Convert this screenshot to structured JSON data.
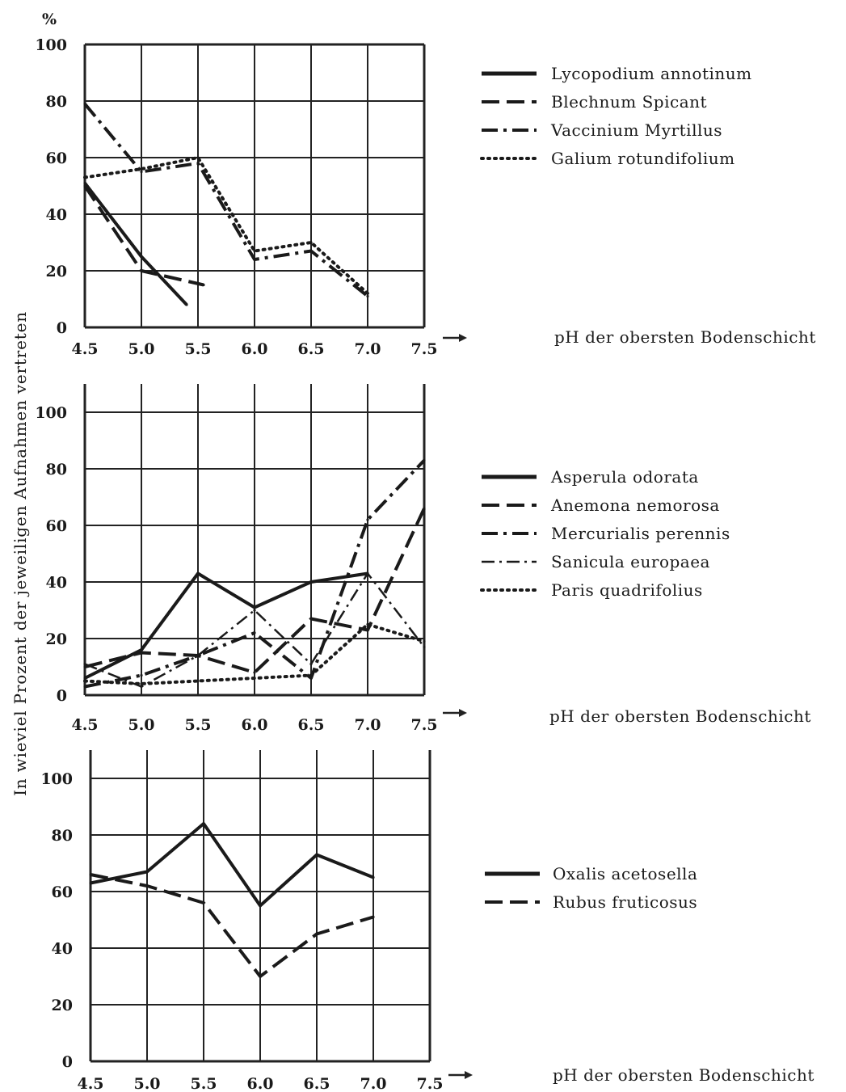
{
  "figure": {
    "y_unit": "%",
    "y_label": "In wieviel Prozent der jeweiligen Aufnahmen vertreten"
  },
  "chart_data": [
    {
      "type": "line",
      "x": [
        4.5,
        5.0,
        5.5,
        6.0,
        6.5,
        7.0,
        7.5
      ],
      "xlabel": "pH der obersten Bodenschicht",
      "ylim": [
        0,
        100
      ],
      "yticks": [
        0,
        20,
        40,
        60,
        80,
        100
      ],
      "xticks": [
        "4.5",
        "5.0",
        "5.5",
        "6.0",
        "6.5",
        "7.0",
        "7.5"
      ],
      "grid": true,
      "legend_position": "right",
      "series": [
        {
          "name": "Lycopodium annotinum",
          "style": "solid",
          "x": [
            4.5,
            5.0,
            5.4
          ],
          "values": [
            51,
            25,
            8
          ]
        },
        {
          "name": "Blechnum Spicant",
          "style": "dashed",
          "x": [
            4.5,
            5.0,
            5.55
          ],
          "values": [
            50,
            20,
            15
          ]
        },
        {
          "name": "Vaccinium Myrtillus",
          "style": "dashdot",
          "x": [
            4.5,
            5.0,
            5.5,
            6.0,
            6.5,
            7.0
          ],
          "values": [
            79,
            55,
            58,
            24,
            27,
            11
          ]
        },
        {
          "name": "Galium rotundifolium",
          "style": "dotted",
          "x": [
            4.5,
            5.0,
            5.5,
            6.0,
            6.5,
            7.0
          ],
          "values": [
            53,
            56,
            60,
            27,
            30,
            12
          ]
        }
      ]
    },
    {
      "type": "line",
      "x": [
        4.5,
        5.0,
        5.5,
        6.0,
        6.5,
        7.0,
        7.5
      ],
      "xlabel": "pH der obersten Bodenschicht",
      "ylim": [
        0,
        110
      ],
      "yticks": [
        0,
        20,
        40,
        60,
        80,
        100
      ],
      "xticks": [
        "4.5",
        "5.0",
        "5.5",
        "6.0",
        "6.5",
        "7.0",
        "7.5"
      ],
      "grid": true,
      "legend_position": "right",
      "series": [
        {
          "name": "Asperula odorata",
          "style": "solid",
          "x": [
            4.5,
            5.0,
            5.5,
            6.0,
            6.5,
            7.0
          ],
          "values": [
            6,
            16,
            43,
            31,
            40,
            43
          ]
        },
        {
          "name": "Anemona nemorosa",
          "style": "dashed",
          "x": [
            4.5,
            5.0,
            5.5,
            6.0,
            6.5,
            7.0,
            7.5
          ],
          "values": [
            10,
            15,
            14,
            8,
            27,
            23,
            66
          ]
        },
        {
          "name": "Mercurialis perennis",
          "style": "dashdot",
          "x": [
            4.5,
            5.0,
            5.5,
            6.0,
            6.5,
            7.0,
            7.5
          ],
          "values": [
            3,
            7,
            14,
            22,
            6,
            62,
            83
          ]
        },
        {
          "name": "Sanicula europaea",
          "style": "dashdotdot",
          "x": [
            4.5,
            5.0,
            5.5,
            6.0,
            6.5,
            7.0,
            7.5
          ],
          "values": [
            11,
            3,
            14,
            30,
            11,
            43,
            17
          ]
        },
        {
          "name": "Paris quadrifolius",
          "style": "dotted",
          "x": [
            4.5,
            5.0,
            5.5,
            6.0,
            6.5,
            7.0,
            7.5
          ],
          "values": [
            5,
            4,
            5,
            6,
            7,
            25,
            19
          ]
        }
      ]
    },
    {
      "type": "line",
      "x": [
        4.5,
        5.0,
        5.5,
        6.0,
        6.5,
        7.0,
        7.5
      ],
      "xlabel": "pH der obersten Bodenschicht",
      "ylim": [
        0,
        110
      ],
      "yticks": [
        0,
        20,
        40,
        60,
        80,
        100
      ],
      "xticks": [
        "4.5",
        "5.0",
        "5.5",
        "6.0",
        "6.5",
        "7.0",
        "7.5"
      ],
      "grid": true,
      "legend_position": "right",
      "series": [
        {
          "name": "Oxalis acetosella",
          "style": "solid",
          "x": [
            4.5,
            5.0,
            5.5,
            6.0,
            6.5,
            7.0
          ],
          "values": [
            63,
            67,
            84,
            55,
            73,
            65
          ]
        },
        {
          "name": "Rubus fruticosus",
          "style": "dashed",
          "x": [
            4.5,
            5.0,
            5.5,
            6.0,
            6.5,
            7.0
          ],
          "values": [
            66,
            62,
            56,
            30,
            45,
            51
          ]
        }
      ]
    }
  ]
}
